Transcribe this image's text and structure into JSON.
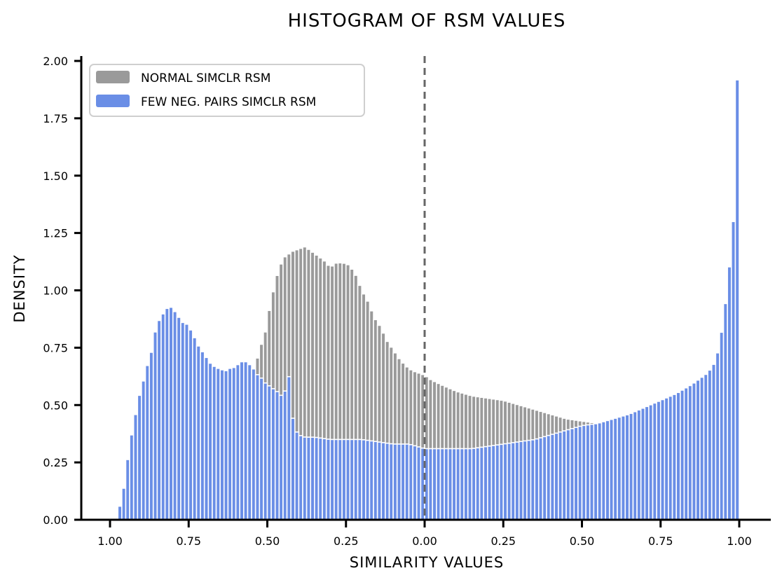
{
  "chart_data": {
    "type": "bar",
    "title": "HISTOGRAM OF RSM VALUES",
    "xlabel": "SIMILARITY VALUES",
    "ylabel": "DENSITY",
    "xlim": [
      -1.05,
      1.0
    ],
    "ylim": [
      0,
      2.0
    ],
    "x_ticks": [
      -1.0,
      -0.75,
      -0.5,
      -0.25,
      0.0,
      0.25,
      0.5,
      0.75,
      1.0
    ],
    "x_tick_labels": [
      "1.00",
      "0.75",
      "0.50",
      "0.25",
      "0.00",
      "0.25",
      "0.50",
      "0.75",
      "1.00"
    ],
    "y_ticks": [
      0,
      0.25,
      0.5,
      0.75,
      1.0,
      1.25,
      1.5,
      1.75,
      2.0
    ],
    "y_tick_labels": [
      "0.00",
      "0.25",
      "0.50",
      "0.75",
      "1.00",
      "1.25",
      "1.50",
      "1.75",
      "2.00"
    ],
    "reference_line": {
      "x": 0.0,
      "style": "dashed",
      "color": "#666666"
    },
    "legend_position": "upper-left",
    "bin_width": 0.0125,
    "series": [
      {
        "name": "NORMAL SIMCLR RSM",
        "color": "#9a9a9a",
        "points": [
          [
            -0.55,
            0.0
          ],
          [
            -0.54,
            0.6
          ],
          [
            -0.53,
            0.72
          ],
          [
            -0.52,
            0.76
          ],
          [
            -0.51,
            0.8
          ],
          [
            -0.5,
            0.85
          ],
          [
            -0.49,
            0.95
          ],
          [
            -0.48,
            1.0
          ],
          [
            -0.47,
            1.06
          ],
          [
            -0.46,
            1.1
          ],
          [
            -0.45,
            1.14
          ],
          [
            -0.44,
            1.15
          ],
          [
            -0.42,
            1.17
          ],
          [
            -0.4,
            1.18
          ],
          [
            -0.38,
            1.19
          ],
          [
            -0.36,
            1.17
          ],
          [
            -0.34,
            1.15
          ],
          [
            -0.32,
            1.13
          ],
          [
            -0.3,
            1.1
          ],
          [
            -0.28,
            1.12
          ],
          [
            -0.26,
            1.12
          ],
          [
            -0.24,
            1.11
          ],
          [
            -0.22,
            1.07
          ],
          [
            -0.2,
            1.0
          ],
          [
            -0.18,
            0.95
          ],
          [
            -0.16,
            0.88
          ],
          [
            -0.14,
            0.84
          ],
          [
            -0.12,
            0.78
          ],
          [
            -0.1,
            0.74
          ],
          [
            -0.08,
            0.7
          ],
          [
            -0.06,
            0.67
          ],
          [
            -0.04,
            0.65
          ],
          [
            -0.02,
            0.64
          ],
          [
            0.0,
            0.63
          ],
          [
            0.02,
            0.61
          ],
          [
            0.05,
            0.59
          ],
          [
            0.1,
            0.56
          ],
          [
            0.15,
            0.54
          ],
          [
            0.2,
            0.53
          ],
          [
            0.25,
            0.52
          ],
          [
            0.3,
            0.5
          ],
          [
            0.35,
            0.48
          ],
          [
            0.4,
            0.46
          ],
          [
            0.45,
            0.44
          ],
          [
            0.5,
            0.43
          ],
          [
            0.55,
            0.42
          ],
          [
            0.6,
            0.4
          ]
        ]
      },
      {
        "name": "FEW NEG. PAIRS SIMCLR RSM",
        "color": "#6a8ee6",
        "points": [
          [
            -0.975,
            0.03
          ],
          [
            -0.96,
            0.1
          ],
          [
            -0.95,
            0.2
          ],
          [
            -0.94,
            0.3
          ],
          [
            -0.93,
            0.38
          ],
          [
            -0.92,
            0.45
          ],
          [
            -0.91,
            0.52
          ],
          [
            -0.9,
            0.58
          ],
          [
            -0.89,
            0.62
          ],
          [
            -0.88,
            0.68
          ],
          [
            -0.87,
            0.72
          ],
          [
            -0.86,
            0.8
          ],
          [
            -0.85,
            0.85
          ],
          [
            -0.84,
            0.88
          ],
          [
            -0.83,
            0.9
          ],
          [
            -0.82,
            0.92
          ],
          [
            -0.81,
            0.93
          ],
          [
            -0.8,
            0.92
          ],
          [
            -0.79,
            0.9
          ],
          [
            -0.78,
            0.88
          ],
          [
            -0.77,
            0.86
          ],
          [
            -0.76,
            0.86
          ],
          [
            -0.75,
            0.84
          ],
          [
            -0.74,
            0.82
          ],
          [
            -0.73,
            0.79
          ],
          [
            -0.72,
            0.76
          ],
          [
            -0.71,
            0.74
          ],
          [
            -0.7,
            0.72
          ],
          [
            -0.69,
            0.7
          ],
          [
            -0.68,
            0.68
          ],
          [
            -0.67,
            0.67
          ],
          [
            -0.66,
            0.66
          ],
          [
            -0.65,
            0.66
          ],
          [
            -0.64,
            0.65
          ],
          [
            -0.63,
            0.65
          ],
          [
            -0.62,
            0.66
          ],
          [
            -0.61,
            0.66
          ],
          [
            -0.6,
            0.67
          ],
          [
            -0.59,
            0.68
          ],
          [
            -0.58,
            0.69
          ],
          [
            -0.57,
            0.69
          ],
          [
            -0.56,
            0.68
          ],
          [
            -0.55,
            0.67
          ],
          [
            -0.54,
            0.65
          ],
          [
            -0.53,
            0.63
          ],
          [
            -0.52,
            0.62
          ],
          [
            -0.51,
            0.6
          ],
          [
            -0.5,
            0.59
          ],
          [
            -0.49,
            0.58
          ],
          [
            -0.48,
            0.57
          ],
          [
            -0.47,
            0.56
          ],
          [
            -0.46,
            0.55
          ],
          [
            -0.45,
            0.53
          ],
          [
            -0.44,
            0.58
          ],
          [
            -0.43,
            0.63
          ],
          [
            -0.425,
            0.62
          ],
          [
            -0.42,
            0.45
          ],
          [
            -0.41,
            0.39
          ],
          [
            -0.4,
            0.37
          ],
          [
            -0.38,
            0.36
          ],
          [
            -0.35,
            0.36
          ],
          [
            -0.3,
            0.35
          ],
          [
            -0.25,
            0.35
          ],
          [
            -0.2,
            0.35
          ],
          [
            -0.15,
            0.34
          ],
          [
            -0.1,
            0.33
          ],
          [
            -0.05,
            0.33
          ],
          [
            0.0,
            0.31
          ],
          [
            0.05,
            0.31
          ],
          [
            0.1,
            0.31
          ],
          [
            0.15,
            0.31
          ],
          [
            0.2,
            0.32
          ],
          [
            0.25,
            0.33
          ],
          [
            0.3,
            0.34
          ],
          [
            0.35,
            0.35
          ],
          [
            0.4,
            0.37
          ],
          [
            0.45,
            0.39
          ],
          [
            0.5,
            0.41
          ],
          [
            0.55,
            0.42
          ],
          [
            0.6,
            0.44
          ],
          [
            0.65,
            0.46
          ],
          [
            0.7,
            0.49
          ],
          [
            0.75,
            0.52
          ],
          [
            0.8,
            0.55
          ],
          [
            0.85,
            0.59
          ],
          [
            0.88,
            0.62
          ],
          [
            0.9,
            0.64
          ],
          [
            0.91,
            0.66
          ],
          [
            0.92,
            0.68
          ],
          [
            0.93,
            0.72
          ],
          [
            0.94,
            0.78
          ],
          [
            0.95,
            0.88
          ],
          [
            0.96,
            0.98
          ],
          [
            0.97,
            1.12
          ],
          [
            0.975,
            1.28
          ],
          [
            0.98,
            1.25
          ],
          [
            0.985,
            1.45
          ],
          [
            0.99,
            1.88
          ],
          [
            0.995,
            1.93
          ]
        ]
      }
    ]
  }
}
